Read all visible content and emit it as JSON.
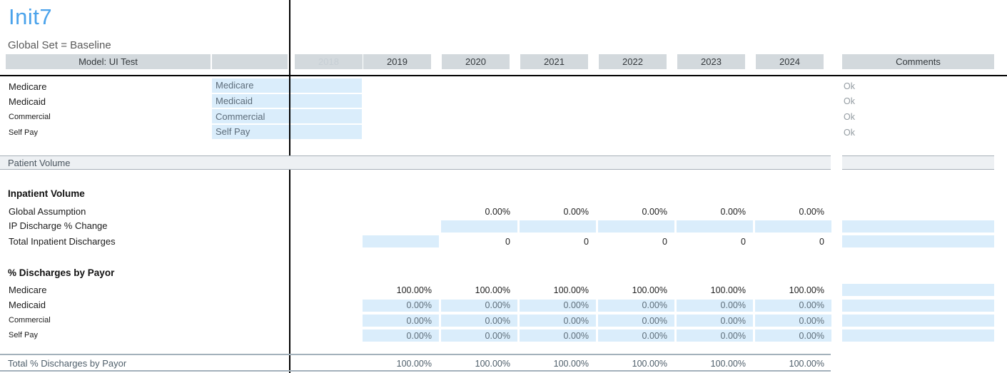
{
  "page": {
    "title": "Init7",
    "subtitle": "Global Set = Baseline"
  },
  "header": {
    "model_label": "Model: UI Test",
    "prior_year": "2018",
    "years": [
      "2019",
      "2020",
      "2021",
      "2022",
      "2023",
      "2024"
    ],
    "comments_label": "Comments"
  },
  "payor_mapping": [
    {
      "label": "Medicare",
      "mapped": "Medicare",
      "comment": "Ok"
    },
    {
      "label": "Medicaid",
      "mapped": "Medicaid",
      "comment": "Ok"
    },
    {
      "label": "Commercial",
      "mapped": "Commercial",
      "comment": "Ok"
    },
    {
      "label": "Self Pay",
      "mapped": "Self Pay",
      "comment": "Ok"
    }
  ],
  "section_patient_volume": {
    "label": "Patient Volume"
  },
  "inpatient_volume": {
    "heading": "Inpatient Volume",
    "rows": [
      {
        "label": "Global Assumption",
        "values": [
          "",
          "0.00%",
          "0.00%",
          "0.00%",
          "0.00%",
          "0.00%"
        ],
        "input_cells": [
          false,
          false,
          false,
          false,
          false,
          false
        ],
        "comment_cell": false
      },
      {
        "label": "IP Discharge % Change",
        "values": [
          "",
          "",
          "",
          "",
          "",
          ""
        ],
        "input_cells": [
          false,
          true,
          true,
          true,
          true,
          true
        ],
        "comment_cell": true
      },
      {
        "label": "Total Inpatient Discharges",
        "values": [
          "",
          "0",
          "0",
          "0",
          "0",
          "0"
        ],
        "input_cells": [
          true,
          false,
          false,
          false,
          false,
          false
        ],
        "comment_cell": true
      }
    ]
  },
  "pct_discharges": {
    "heading": "% Discharges by Payor",
    "rows": [
      {
        "label": "Medicare",
        "values": [
          "100.00%",
          "100.00%",
          "100.00%",
          "100.00%",
          "100.00%",
          "100.00%"
        ],
        "input": false,
        "comment_cell": true
      },
      {
        "label": "Medicaid",
        "values": [
          "0.00%",
          "0.00%",
          "0.00%",
          "0.00%",
          "0.00%",
          "0.00%"
        ],
        "input": true,
        "comment_cell": true
      },
      {
        "label": "Commercial",
        "values": [
          "0.00%",
          "0.00%",
          "0.00%",
          "0.00%",
          "0.00%",
          "0.00%"
        ],
        "input": true,
        "comment_cell": true
      },
      {
        "label": "Self Pay",
        "values": [
          "0.00%",
          "0.00%",
          "0.00%",
          "0.00%",
          "0.00%",
          "0.00%"
        ],
        "input": true,
        "comment_cell": true
      }
    ],
    "total": {
      "label": "Total % Discharges by Payor",
      "values": [
        "100.00%",
        "100.00%",
        "100.00%",
        "100.00%",
        "100.00%",
        "100.00%"
      ]
    }
  },
  "colors": {
    "accent_title": "#4BA3EB",
    "input_cell_bg": "#DAEDFB",
    "header_bg": "#D3D9DD",
    "section_bg": "#EDF0F3",
    "divider_black": "#000000",
    "comment_text": "#949CA2",
    "blue_cell_text": "#5E6E7A"
  }
}
